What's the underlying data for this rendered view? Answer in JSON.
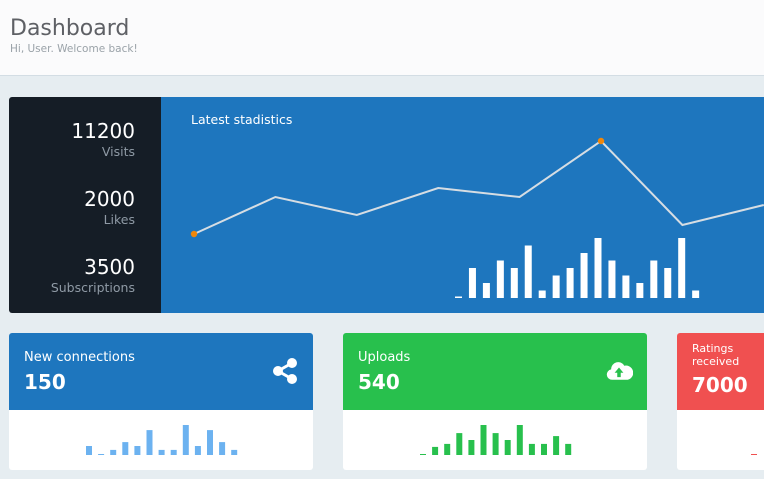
{
  "header": {
    "title": "Dashboard",
    "subtitle": "Hi, User. Welcome back!"
  },
  "stats": [
    {
      "value": "11200",
      "label": "Visits"
    },
    {
      "value": "2000",
      "label": "Likes"
    },
    {
      "value": "3500",
      "label": "Subscriptions"
    }
  ],
  "chart_data": [
    {
      "type": "line",
      "title": "Latest stadistics",
      "values": [
        64,
        101,
        83,
        110,
        101,
        157,
        73,
        93
      ],
      "line_color": "#d6dde3",
      "highlight_color": "#f0870b",
      "highlighted_points": [
        0,
        5
      ]
    },
    {
      "type": "bar",
      "values": [
        0.2,
        4,
        2,
        5,
        4,
        7,
        1,
        3,
        4,
        6,
        8,
        5,
        3,
        2,
        5,
        4,
        8,
        1
      ],
      "color": "#ffffff"
    },
    {
      "type": "bar",
      "values": [
        3,
        0.3,
        1.7,
        4.3,
        3,
        8.3,
        1.7,
        1.7,
        10,
        3,
        8.3,
        4.3,
        1.7
      ],
      "color": "#6cb2f0"
    },
    {
      "type": "bar",
      "values": [
        0.3,
        2.7,
        3.7,
        7.3,
        5,
        10,
        7.3,
        5,
        10,
        3.7,
        3.7,
        6.3,
        3.7
      ],
      "color": "#28c04d"
    },
    {
      "type": "bar",
      "values": [
        0.3
      ],
      "color": "#f05050"
    }
  ],
  "cards": [
    {
      "label": "New connections",
      "value": "150",
      "color": "#1e76be",
      "icon": "share-icon"
    },
    {
      "label": "Uploads",
      "value": "540",
      "color": "#28c04d",
      "icon": "cloud-upload-icon"
    },
    {
      "label": "Ratings received",
      "value": "7000",
      "color": "#f05050",
      "icon": "star-icon"
    }
  ]
}
